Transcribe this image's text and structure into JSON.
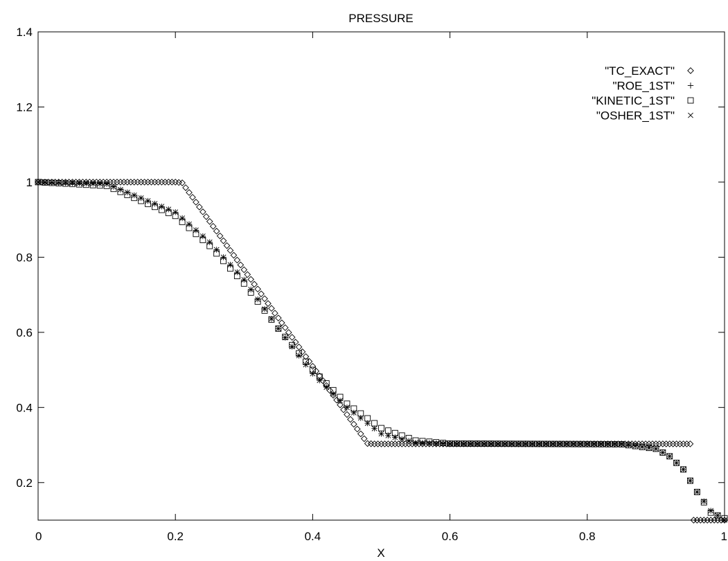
{
  "chart_data": {
    "type": "scatter",
    "title": "PRESSURE",
    "xlabel": "X",
    "ylabel": "",
    "xlim": [
      0,
      1
    ],
    "ylim": [
      0.1,
      1.4
    ],
    "xticks": [
      0,
      0.2,
      0.4,
      0.6,
      0.8,
      1
    ],
    "yticks": [
      0.2,
      0.4,
      0.6,
      0.8,
      1,
      1.2,
      1.4
    ],
    "xtick_labels": [
      "0",
      "0.2",
      "0.4",
      "0.6",
      "0.8",
      "1"
    ],
    "ytick_labels": [
      "0.2",
      "0.4",
      "0.6",
      "0.8",
      "1",
      "1.2",
      "1.4"
    ],
    "grid": false,
    "legend_position": "top-right",
    "series": [
      {
        "name": "\"TC_EXACT\"",
        "marker": "diamond",
        "points": [
          [
            0.0,
            1.0
          ],
          [
            0.2,
            1.0
          ],
          [
            0.21,
            0.998
          ],
          [
            0.48,
            0.304
          ],
          [
            0.49,
            0.303
          ],
          [
            0.95,
            0.303
          ],
          [
            0.951,
            0.1
          ],
          [
            1.0,
            0.1
          ]
        ]
      },
      {
        "name": "\"ROE_1ST\"",
        "marker": "plus",
        "points": [
          [
            0.0,
            1.0
          ],
          [
            0.1,
            0.995
          ],
          [
            0.2,
            0.92
          ],
          [
            0.25,
            0.84
          ],
          [
            0.3,
            0.74
          ],
          [
            0.35,
            0.61
          ],
          [
            0.4,
            0.49
          ],
          [
            0.45,
            0.4
          ],
          [
            0.5,
            0.33
          ],
          [
            0.55,
            0.306
          ],
          [
            0.6,
            0.303
          ],
          [
            0.85,
            0.303
          ],
          [
            0.9,
            0.29
          ],
          [
            0.92,
            0.27
          ],
          [
            0.94,
            0.235
          ],
          [
            0.96,
            0.175
          ],
          [
            0.98,
            0.125
          ],
          [
            1.0,
            0.1
          ]
        ]
      },
      {
        "name": "\"KINETIC_1ST\"",
        "marker": "square",
        "points": [
          [
            0.0,
            1.0
          ],
          [
            0.1,
            0.99
          ],
          [
            0.2,
            0.91
          ],
          [
            0.25,
            0.83
          ],
          [
            0.3,
            0.73
          ],
          [
            0.35,
            0.61
          ],
          [
            0.4,
            0.5
          ],
          [
            0.45,
            0.41
          ],
          [
            0.5,
            0.345
          ],
          [
            0.55,
            0.312
          ],
          [
            0.6,
            0.304
          ],
          [
            0.85,
            0.302
          ],
          [
            0.9,
            0.29
          ],
          [
            0.92,
            0.27
          ],
          [
            0.94,
            0.235
          ],
          [
            0.96,
            0.175
          ],
          [
            0.98,
            0.12
          ],
          [
            1.0,
            0.105
          ]
        ]
      },
      {
        "name": "\"OSHER_1ST\"",
        "marker": "cross",
        "points": [
          [
            0.0,
            1.0
          ],
          [
            0.1,
            0.995
          ],
          [
            0.2,
            0.92
          ],
          [
            0.25,
            0.84
          ],
          [
            0.3,
            0.74
          ],
          [
            0.35,
            0.61
          ],
          [
            0.4,
            0.49
          ],
          [
            0.45,
            0.4
          ],
          [
            0.5,
            0.33
          ],
          [
            0.55,
            0.306
          ],
          [
            0.6,
            0.303
          ],
          [
            0.85,
            0.303
          ],
          [
            0.9,
            0.29
          ],
          [
            0.92,
            0.27
          ],
          [
            0.94,
            0.235
          ],
          [
            0.96,
            0.175
          ],
          [
            0.98,
            0.125
          ],
          [
            1.0,
            0.1
          ]
        ]
      }
    ]
  }
}
